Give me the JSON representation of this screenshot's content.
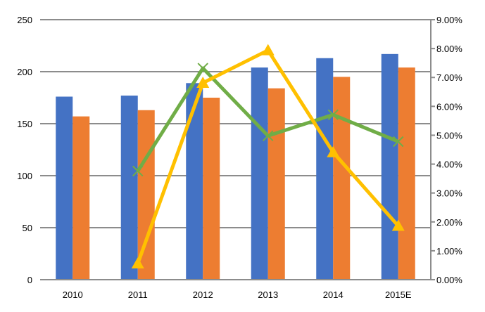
{
  "chart_data": {
    "type": "bar+line",
    "categories": [
      "2010",
      "2011",
      "2012",
      "2013",
      "2014",
      "2015E"
    ],
    "bar_series": [
      {
        "color": "#4472C4",
        "values": [
          176,
          177,
          189,
          204,
          213,
          217
        ]
      },
      {
        "color": "#ED7D31",
        "values": [
          157,
          163,
          175,
          184,
          195,
          204
        ]
      }
    ],
    "line_series": [
      {
        "color": "#70AD47",
        "marker": "x",
        "axis": "right",
        "values": [
          null,
          3.76,
          7.32,
          4.98,
          5.71,
          4.78
        ]
      },
      {
        "color": "#FFC000",
        "marker": "triangle",
        "axis": "right",
        "values": [
          null,
          0.56,
          6.81,
          7.94,
          4.41,
          1.86
        ]
      }
    ],
    "left_axis": {
      "ylim": [
        0,
        250
      ],
      "ticks": [
        "0",
        "50",
        "100",
        "150",
        "200",
        "250"
      ]
    },
    "right_axis": {
      "ylim": [
        0,
        9
      ],
      "unit": "%",
      "ticks": [
        "0.00%",
        "1.00%",
        "2.00%",
        "3.00%",
        "4.00%",
        "5.00%",
        "6.00%",
        "7.00%",
        "8.00%",
        "9.00%"
      ]
    },
    "grid": true,
    "legend": "none"
  }
}
